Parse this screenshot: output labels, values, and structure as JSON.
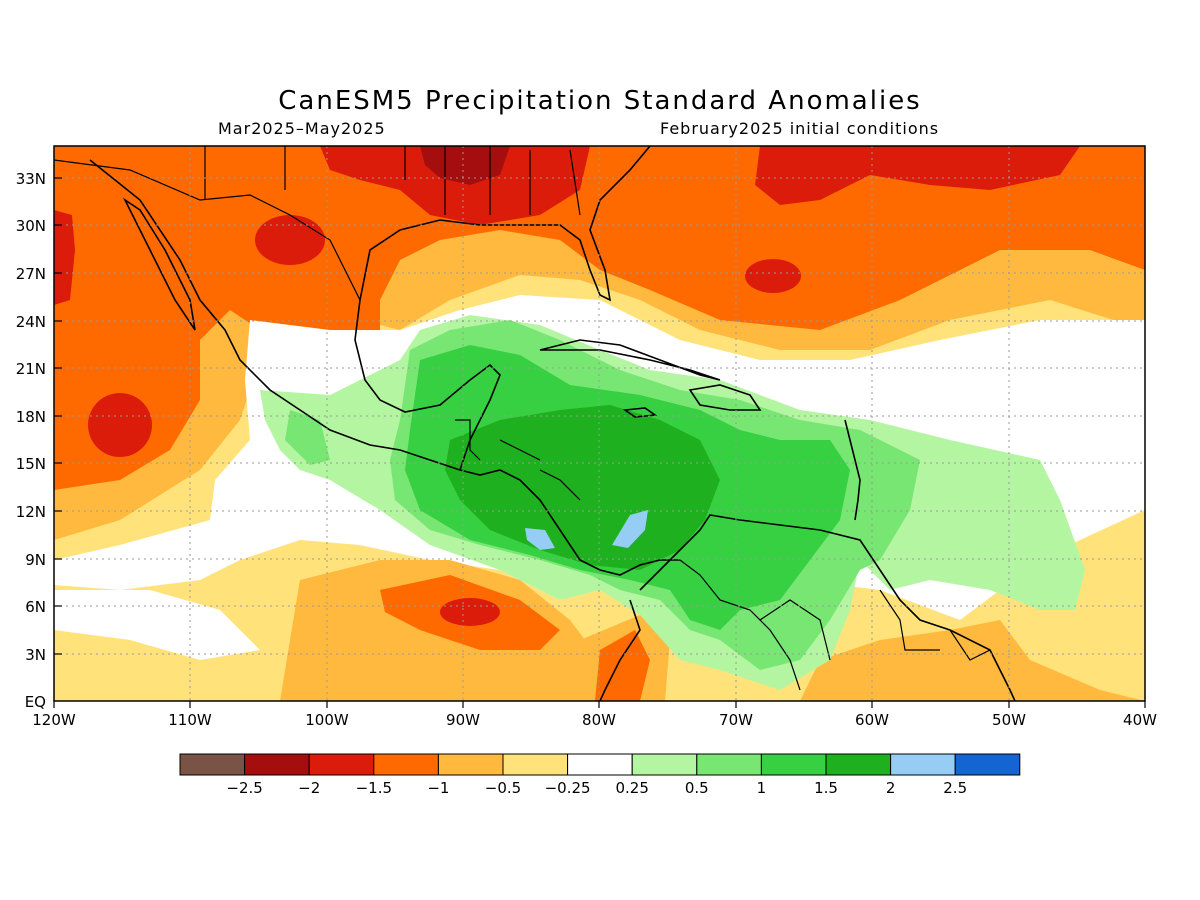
{
  "header": {
    "title": "CanESM5 Precipitation Standard Anomalies",
    "period": "Mar2025–May2025",
    "initial_conditions": "February2025 initial conditions"
  },
  "map": {
    "lon_range": [
      -120,
      -40
    ],
    "lat_range": [
      0,
      35
    ],
    "grid_lines": "dotted",
    "lat_labels": [
      "EQ",
      "3N",
      "6N",
      "9N",
      "12N",
      "15N",
      "18N",
      "21N",
      "24N",
      "27N",
      "30N",
      "33N"
    ],
    "lon_labels": [
      "120W",
      "110W",
      "100W",
      "90W",
      "80W",
      "70W",
      "60W",
      "50W",
      "40W"
    ],
    "regions": [
      {
        "name": "dry-southern-us-atlantic",
        "category": "-1.5 to -1"
      },
      {
        "name": "very-dry-gulf-states",
        "category": "-2 to -1.5"
      },
      {
        "name": "wet-caribbean-central-america",
        "category": "1.5 to 2"
      },
      {
        "name": "very-wet-spots",
        "category": "2 to 2.5"
      },
      {
        "name": "wet-tropical-atlantic",
        "category": "0.25 to 1"
      }
    ]
  },
  "legend": {
    "labels": [
      "−2.5",
      "−2",
      "−1.5",
      "−1",
      "−0.5",
      "−0.25",
      "0.25",
      "0.5",
      "1",
      "1.5",
      "2",
      "2.5"
    ],
    "colors": [
      "#7b5246",
      "#a50e0e",
      "#dc1c0a",
      "#ff6a00",
      "#ffb93e",
      "#ffe37a",
      "#ffffff",
      "#b4f5a2",
      "#78e673",
      "#37d042",
      "#1eb01e",
      "#96cdf5",
      "#1464d2"
    ]
  }
}
